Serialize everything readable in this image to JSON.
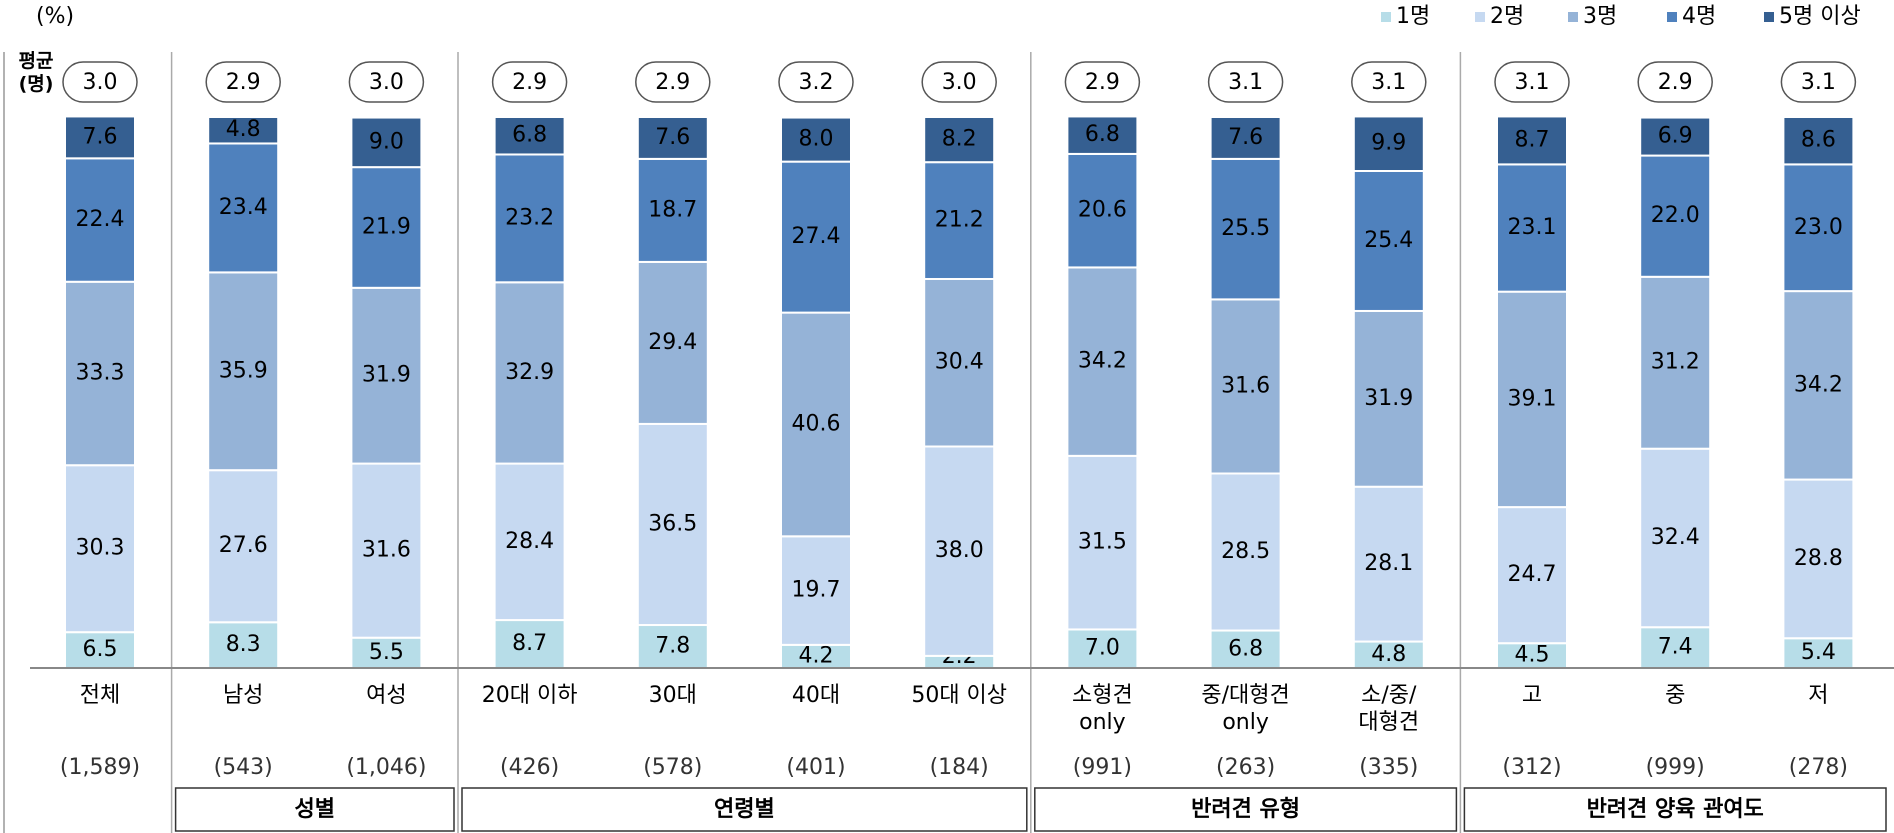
{
  "chart_data": {
    "type": "stacked_bar",
    "unit_label": "(%)",
    "average_title": "평균\n(명)",
    "categories": [
      "전체",
      "남성",
      "여성",
      "20대  이하",
      "30대",
      "40대",
      "50대 이상",
      "소형견\nonly",
      "중/대형견\nonly",
      "소/중/\n대형견",
      "고",
      "중",
      "저"
    ],
    "sample_sizes": [
      "(1,589)",
      "(543)",
      "(1,046)",
      "(426)",
      "(578)",
      "(401)",
      "(184)",
      "(991)",
      "(263)",
      "(335)",
      "(312)",
      "(999)",
      "(278)"
    ],
    "averages": [
      "3.0",
      "2.9",
      "3.0",
      "2.9",
      "2.9",
      "3.2",
      "3.0",
      "2.9",
      "3.1",
      "3.1",
      "3.1",
      "2.9",
      "3.1"
    ],
    "groups": [
      {
        "label": "성별",
        "start": 1,
        "end": 2
      },
      {
        "label": "연령별",
        "start": 3,
        "end": 6
      },
      {
        "label": "반려견 유형",
        "start": 7,
        "end": 9
      },
      {
        "label": "반려견 양육 관여도",
        "start": 10,
        "end": 12
      }
    ],
    "ylim": [
      0,
      100
    ],
    "series": [
      {
        "name": "1명",
        "color": "#b7dde8",
        "label_color": "#000000",
        "values": [
          6.5,
          8.3,
          5.5,
          8.7,
          7.8,
          4.2,
          2.2,
          7.0,
          6.8,
          4.8,
          4.5,
          7.4,
          5.4
        ],
        "value_labels": [
          "6.5",
          "8.3",
          "5.5",
          "8.7",
          "7.8",
          "4.2",
          "2.2",
          "7.0",
          "6.8",
          "4.8",
          "4.5",
          "7.4",
          "5.4"
        ]
      },
      {
        "name": "2명",
        "color": "#c6d9f1",
        "label_color": "#000000",
        "values": [
          30.3,
          27.6,
          31.6,
          28.4,
          36.5,
          19.7,
          38.0,
          31.5,
          28.5,
          28.1,
          24.7,
          32.4,
          28.8
        ],
        "value_labels": [
          "30.3",
          "27.6",
          "31.6",
          "28.4",
          "36.5",
          "19.7",
          "38.0",
          "31.5",
          "28.5",
          "28.1",
          "24.7",
          "32.4",
          "28.8"
        ]
      },
      {
        "name": "3명",
        "color": "#95b3d7",
        "label_color": "#000000",
        "values": [
          33.3,
          35.9,
          31.9,
          32.9,
          29.4,
          40.6,
          30.4,
          34.2,
          31.6,
          31.9,
          39.1,
          31.2,
          34.2
        ],
        "value_labels": [
          "33.3",
          "35.9",
          "31.9",
          "32.9",
          "29.4",
          "40.6",
          "30.4",
          "34.2",
          "31.6",
          "31.9",
          "39.1",
          "31.2",
          "34.2"
        ]
      },
      {
        "name": "4명",
        "color": "#4f81bd",
        "label_color": "#ffffff",
        "values": [
          22.4,
          23.4,
          21.9,
          23.2,
          18.7,
          27.4,
          21.2,
          20.6,
          25.5,
          25.4,
          23.1,
          22.0,
          23.0
        ],
        "value_labels": [
          "22.4",
          "23.4",
          "21.9",
          "23.2",
          "18.7",
          "27.4",
          "21.2",
          "20.6",
          "25.5",
          "25.4",
          "23.1",
          "22.0",
          "23.0"
        ]
      },
      {
        "name": "5명 이상",
        "color": "#355f91",
        "label_color": "#ffffff",
        "values": [
          7.6,
          4.8,
          9.0,
          6.8,
          7.6,
          8.0,
          8.2,
          6.8,
          7.6,
          9.9,
          8.7,
          6.9,
          8.6
        ],
        "value_labels": [
          "7.6",
          "4.8",
          "9.0",
          "6.8",
          "7.6",
          "8.0",
          "8.2",
          "6.8",
          "7.6",
          "9.9",
          "8.7",
          "6.9",
          "8.6"
        ]
      }
    ]
  }
}
